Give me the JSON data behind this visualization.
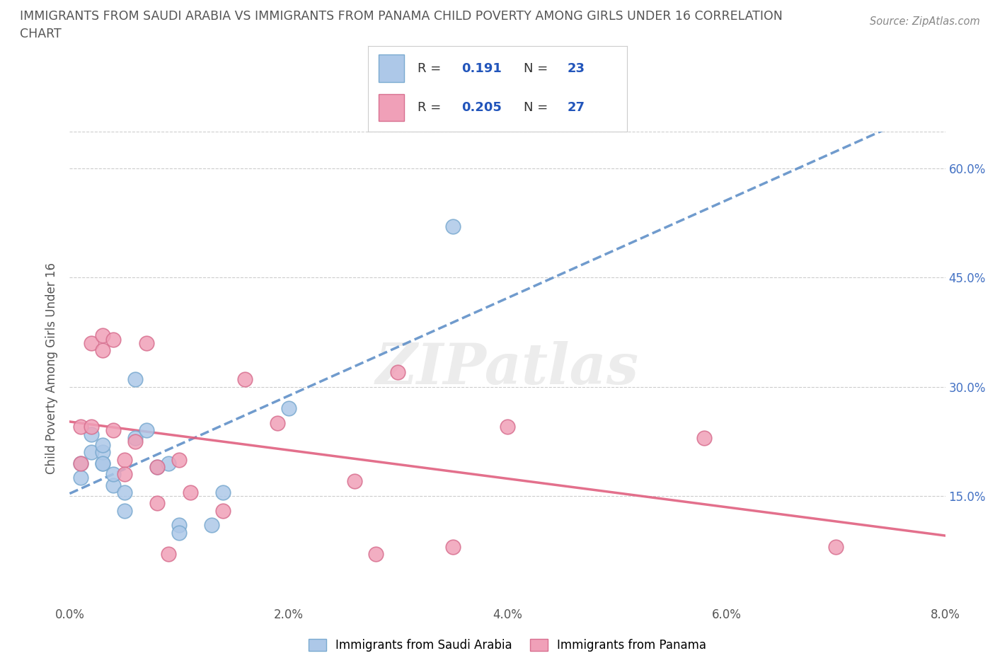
{
  "title_line1": "IMMIGRANTS FROM SAUDI ARABIA VS IMMIGRANTS FROM PANAMA CHILD POVERTY AMONG GIRLS UNDER 16 CORRELATION",
  "title_line2": "CHART",
  "source": "Source: ZipAtlas.com",
  "ylabel": "Child Poverty Among Girls Under 16",
  "xlim": [
    0.0,
    0.08
  ],
  "ylim": [
    0.0,
    0.65
  ],
  "xtick_labels": [
    "0.0%",
    "2.0%",
    "4.0%",
    "6.0%",
    "8.0%"
  ],
  "xtick_vals": [
    0.0,
    0.02,
    0.04,
    0.06,
    0.08
  ],
  "ytick_labels": [
    "15.0%",
    "30.0%",
    "45.0%",
    "60.0%"
  ],
  "ytick_vals": [
    0.15,
    0.3,
    0.45,
    0.6
  ],
  "r_saudi": 0.191,
  "n_saudi": 23,
  "r_panama": 0.205,
  "n_panama": 27,
  "color_saudi": "#adc8e8",
  "color_saudi_edge": "#7aaad0",
  "color_panama": "#f0a0b8",
  "color_panama_edge": "#d87090",
  "color_saudi_line": "#6090c8",
  "color_panama_line": "#e06080",
  "legend_label_saudi": "Immigrants from Saudi Arabia",
  "legend_label_panama": "Immigrants from Panama",
  "saudi_x": [
    0.001,
    0.001,
    0.002,
    0.002,
    0.003,
    0.003,
    0.003,
    0.003,
    0.004,
    0.004,
    0.005,
    0.005,
    0.006,
    0.006,
    0.007,
    0.008,
    0.009,
    0.01,
    0.01,
    0.013,
    0.014,
    0.02,
    0.035
  ],
  "saudi_y": [
    0.195,
    0.175,
    0.235,
    0.21,
    0.195,
    0.21,
    0.22,
    0.195,
    0.165,
    0.18,
    0.13,
    0.155,
    0.31,
    0.23,
    0.24,
    0.19,
    0.195,
    0.11,
    0.1,
    0.11,
    0.155,
    0.27,
    0.52
  ],
  "panama_x": [
    0.001,
    0.001,
    0.002,
    0.002,
    0.003,
    0.003,
    0.004,
    0.004,
    0.005,
    0.005,
    0.006,
    0.007,
    0.008,
    0.008,
    0.009,
    0.01,
    0.011,
    0.014,
    0.016,
    0.019,
    0.026,
    0.028,
    0.03,
    0.035,
    0.04,
    0.058,
    0.07
  ],
  "panama_y": [
    0.245,
    0.195,
    0.36,
    0.245,
    0.35,
    0.37,
    0.24,
    0.365,
    0.2,
    0.18,
    0.225,
    0.36,
    0.19,
    0.14,
    0.07,
    0.2,
    0.155,
    0.13,
    0.31,
    0.25,
    0.17,
    0.07,
    0.32,
    0.08,
    0.245,
    0.23,
    0.08
  ],
  "background_color": "#ffffff",
  "grid_color": "#cccccc",
  "watermark": "ZIPatlas"
}
